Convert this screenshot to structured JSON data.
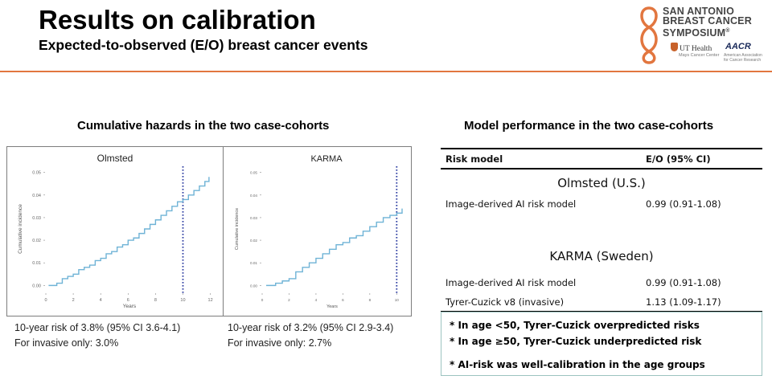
{
  "header": {
    "title": "Results on calibration",
    "subtitle": "Expected-to-observed (E/O) breast cancer events"
  },
  "logo": {
    "line1": "SAN ANTONIO",
    "line2": "BREAST CANCER",
    "line3": "SYMPOSIUM",
    "reg": "®",
    "ut": "UT Health",
    "ut_sub": "Mays Cancer Center",
    "aacr": "AACR",
    "aacr_sub1": "American Association",
    "aacr_sub2": "for Cancer Research",
    "colors": {
      "ribbon": "#e2763f",
      "ut": "#c8622a",
      "aacr": "#1a2a5a"
    }
  },
  "left": {
    "heading": "Cumulative hazards in the two case-cohorts"
  },
  "right": {
    "heading": "Model performance in the two case-cohorts"
  },
  "chart_data": [
    {
      "type": "line",
      "title": "Olmsted",
      "xlabel": "Years",
      "ylabel": "Cumulative incidence",
      "xlim": [
        0,
        12.2
      ],
      "ylim": [
        -0.002,
        0.052
      ],
      "xticks": [
        0,
        2,
        4,
        6,
        8,
        10,
        12
      ],
      "xticklabels": [
        "0",
        "2",
        "4",
        "6",
        "8",
        "10",
        "12"
      ],
      "yticks": [
        0,
        0.01,
        0.02,
        0.03,
        0.04,
        0.05
      ],
      "yticklabels": [
        "0.00",
        "0.01",
        "0.02",
        "0.03",
        "0.04",
        "0.05"
      ],
      "reference_x": 10,
      "line_color": "#6fb3d6",
      "ref_color": "#2a3aa0",
      "series": [
        {
          "name": "Olmsted",
          "x": [
            0.2,
            0.8,
            1.2,
            1.6,
            2.0,
            2.4,
            2.8,
            3.2,
            3.6,
            4.0,
            4.4,
            4.8,
            5.2,
            5.6,
            6.0,
            6.4,
            6.8,
            7.2,
            7.6,
            8.0,
            8.4,
            8.8,
            9.2,
            9.6,
            10.0,
            10.4,
            10.8,
            11.2,
            11.6,
            11.9
          ],
          "y": [
            0.0,
            0.001,
            0.003,
            0.004,
            0.005,
            0.007,
            0.008,
            0.009,
            0.011,
            0.012,
            0.014,
            0.015,
            0.017,
            0.018,
            0.02,
            0.021,
            0.023,
            0.025,
            0.027,
            0.029,
            0.031,
            0.033,
            0.035,
            0.037,
            0.038,
            0.04,
            0.042,
            0.044,
            0.046,
            0.048
          ]
        }
      ]
    },
    {
      "type": "line",
      "title": "KARMA",
      "xlabel": "Years",
      "ylabel": "Cumulative incidence",
      "xlim": [
        0,
        10.4
      ],
      "ylim": [
        -0.002,
        0.052
      ],
      "xticks": [
        0,
        2,
        4,
        6,
        8,
        10
      ],
      "xticklabels": [
        "0",
        "2",
        "4",
        "6",
        "8",
        "10"
      ],
      "yticks": [
        0,
        0.01,
        0.02,
        0.03,
        0.04,
        0.05
      ],
      "yticklabels": [
        "0.00",
        "0.01",
        "0.02",
        "0.03",
        "0.04",
        "0.05"
      ],
      "reference_x": 10,
      "line_color": "#6fb3d6",
      "ref_color": "#2a3aa0",
      "series": [
        {
          "name": "KARMA",
          "x": [
            0.3,
            1.0,
            1.5,
            2.0,
            2.5,
            3.0,
            3.5,
            4.0,
            4.5,
            5.0,
            5.5,
            6.0,
            6.5,
            7.0,
            7.5,
            8.0,
            8.5,
            9.0,
            9.5,
            10.0,
            10.4
          ],
          "y": [
            0.0,
            0.001,
            0.002,
            0.003,
            0.006,
            0.008,
            0.01,
            0.012,
            0.014,
            0.016,
            0.018,
            0.019,
            0.021,
            0.022,
            0.024,
            0.026,
            0.028,
            0.03,
            0.031,
            0.032,
            0.034
          ]
        }
      ]
    }
  ],
  "captions": {
    "olmsted_1": "10-year risk of 3.8% (95% CI 3.6-4.1)",
    "olmsted_2": "For invasive only: 3.0%",
    "karma_1": "10-year risk of 3.2% (95% CI 2.9-3.4)",
    "karma_2": "For invasive only: 2.7%"
  },
  "table": {
    "col_model": "Risk model",
    "col_eo": "E/O (95% CI)",
    "olmsted_label": "Olmsted (U.S.)",
    "olmsted_rows": [
      {
        "model": "Image-derived AI risk model",
        "eo": "0.99 (0.91-1.08)"
      }
    ],
    "karma_label": "KARMA (Sweden)",
    "karma_rows": [
      {
        "model": "Image-derived AI risk model",
        "eo": "0.99 (0.91-1.08)"
      },
      {
        "model": "Tyrer-Cuzick v8 (invasive)",
        "eo": "1.13 (1.09-1.17)"
      }
    ]
  },
  "notes": {
    "n1": "* In age <50, Tyrer-Cuzick overpredicted risks",
    "n2": "* In age ≥50, Tyrer-Cuzick underpredicted risk",
    "n3": "* AI-risk was well-calibration in the age groups"
  }
}
